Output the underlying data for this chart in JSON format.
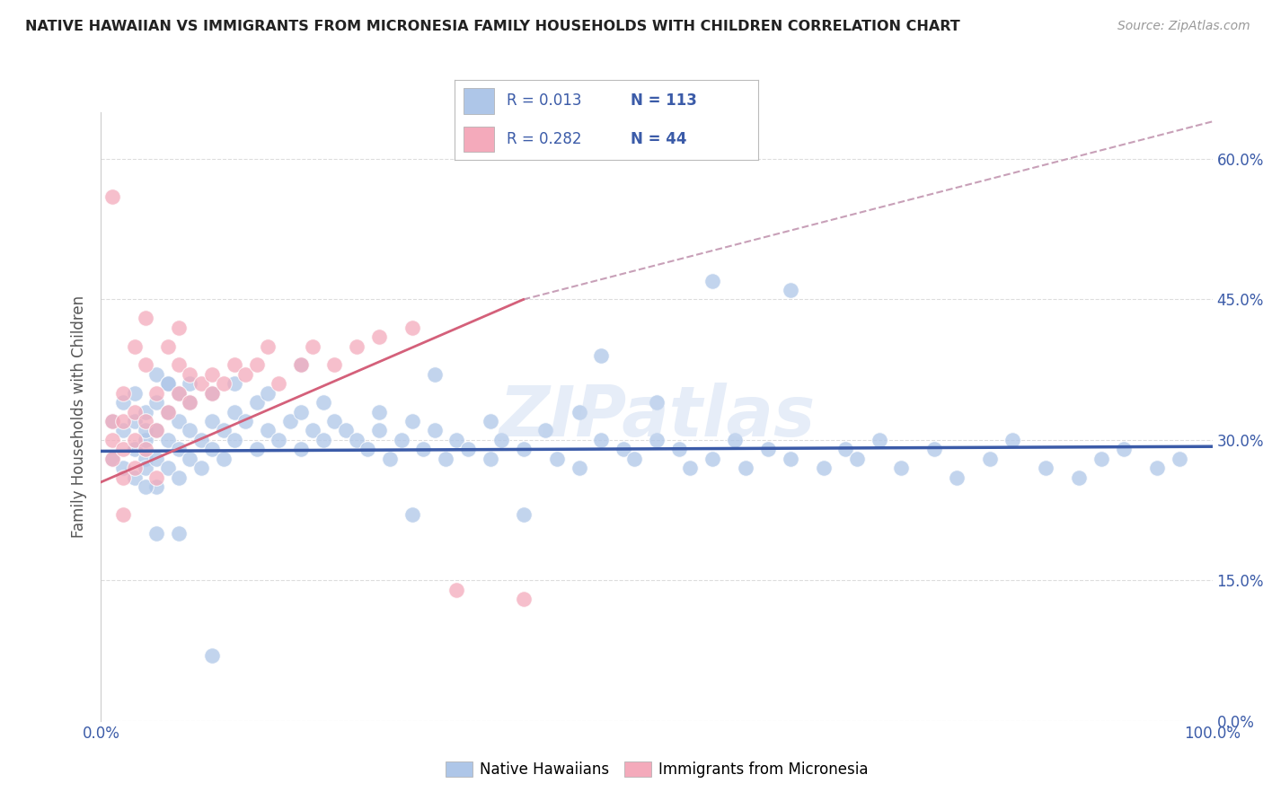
{
  "title": "NATIVE HAWAIIAN VS IMMIGRANTS FROM MICRONESIA FAMILY HOUSEHOLDS WITH CHILDREN CORRELATION CHART",
  "source": "Source: ZipAtlas.com",
  "ylabel": "Family Households with Children",
  "xlim": [
    0.0,
    1.0
  ],
  "ylim": [
    0.0,
    0.65
  ],
  "yticks": [
    0.0,
    0.15,
    0.3,
    0.45,
    0.6
  ],
  "ytick_labels": [
    "0.0%",
    "15.0%",
    "30.0%",
    "45.0%",
    "60.0%"
  ],
  "xticks": [
    0.0,
    1.0
  ],
  "xtick_labels": [
    "0.0%",
    "100.0%"
  ],
  "legend_r1": "0.013",
  "legend_n1": "113",
  "legend_r2": "0.282",
  "legend_n2": "44",
  "color_blue": "#AEC6E8",
  "color_pink": "#F4AABB",
  "color_blue_line": "#3B5BA8",
  "color_pink_line": "#D4607A",
  "color_dashed": "#C8A0B8",
  "watermark": "ZIPatlas",
  "blue_scatter_x": [
    0.01,
    0.01,
    0.02,
    0.02,
    0.02,
    0.03,
    0.03,
    0.03,
    0.03,
    0.04,
    0.04,
    0.04,
    0.04,
    0.04,
    0.05,
    0.05,
    0.05,
    0.05,
    0.05,
    0.06,
    0.06,
    0.06,
    0.06,
    0.07,
    0.07,
    0.07,
    0.07,
    0.08,
    0.08,
    0.08,
    0.09,
    0.09,
    0.1,
    0.1,
    0.1,
    0.11,
    0.11,
    0.12,
    0.12,
    0.13,
    0.14,
    0.14,
    0.15,
    0.16,
    0.17,
    0.18,
    0.18,
    0.19,
    0.2,
    0.21,
    0.22,
    0.23,
    0.24,
    0.25,
    0.26,
    0.27,
    0.28,
    0.29,
    0.3,
    0.31,
    0.32,
    0.33,
    0.35,
    0.36,
    0.38,
    0.4,
    0.41,
    0.43,
    0.45,
    0.47,
    0.48,
    0.5,
    0.52,
    0.53,
    0.55,
    0.57,
    0.58,
    0.6,
    0.62,
    0.65,
    0.67,
    0.68,
    0.7,
    0.72,
    0.75,
    0.77,
    0.8,
    0.82,
    0.85,
    0.88,
    0.9,
    0.92,
    0.95,
    0.97,
    0.18,
    0.3,
    0.45,
    0.55,
    0.62,
    0.5,
    0.38,
    0.28,
    0.1,
    0.07,
    0.05,
    0.04,
    0.06,
    0.08,
    0.12,
    0.15,
    0.2,
    0.25,
    0.35,
    0.43
  ],
  "blue_scatter_y": [
    0.28,
    0.32,
    0.27,
    0.31,
    0.34,
    0.26,
    0.29,
    0.32,
    0.35,
    0.28,
    0.3,
    0.33,
    0.27,
    0.31,
    0.25,
    0.28,
    0.31,
    0.34,
    0.37,
    0.27,
    0.3,
    0.33,
    0.36,
    0.26,
    0.29,
    0.32,
    0.35,
    0.28,
    0.31,
    0.34,
    0.27,
    0.3,
    0.29,
    0.32,
    0.35,
    0.28,
    0.31,
    0.3,
    0.33,
    0.32,
    0.29,
    0.34,
    0.31,
    0.3,
    0.32,
    0.29,
    0.33,
    0.31,
    0.3,
    0.32,
    0.31,
    0.3,
    0.29,
    0.31,
    0.28,
    0.3,
    0.32,
    0.29,
    0.31,
    0.28,
    0.3,
    0.29,
    0.28,
    0.3,
    0.29,
    0.31,
    0.28,
    0.27,
    0.3,
    0.29,
    0.28,
    0.3,
    0.29,
    0.27,
    0.28,
    0.3,
    0.27,
    0.29,
    0.28,
    0.27,
    0.29,
    0.28,
    0.3,
    0.27,
    0.29,
    0.26,
    0.28,
    0.3,
    0.27,
    0.26,
    0.28,
    0.29,
    0.27,
    0.28,
    0.38,
    0.37,
    0.39,
    0.47,
    0.46,
    0.34,
    0.22,
    0.22,
    0.07,
    0.2,
    0.2,
    0.25,
    0.36,
    0.36,
    0.36,
    0.35,
    0.34,
    0.33,
    0.32,
    0.33
  ],
  "pink_scatter_x": [
    0.01,
    0.01,
    0.01,
    0.01,
    0.02,
    0.02,
    0.02,
    0.02,
    0.02,
    0.03,
    0.03,
    0.03,
    0.03,
    0.04,
    0.04,
    0.04,
    0.04,
    0.05,
    0.05,
    0.05,
    0.06,
    0.06,
    0.07,
    0.07,
    0.07,
    0.08,
    0.08,
    0.09,
    0.1,
    0.1,
    0.11,
    0.12,
    0.13,
    0.14,
    0.15,
    0.16,
    0.18,
    0.19,
    0.21,
    0.23,
    0.25,
    0.28,
    0.32,
    0.38
  ],
  "pink_scatter_y": [
    0.56,
    0.3,
    0.32,
    0.28,
    0.26,
    0.29,
    0.32,
    0.35,
    0.22,
    0.27,
    0.3,
    0.33,
    0.4,
    0.29,
    0.32,
    0.43,
    0.38,
    0.31,
    0.35,
    0.26,
    0.33,
    0.4,
    0.35,
    0.38,
    0.42,
    0.34,
    0.37,
    0.36,
    0.37,
    0.35,
    0.36,
    0.38,
    0.37,
    0.38,
    0.4,
    0.36,
    0.38,
    0.4,
    0.38,
    0.4,
    0.41,
    0.42,
    0.14,
    0.13
  ],
  "blue_line_x": [
    0.0,
    1.0
  ],
  "blue_line_y": [
    0.288,
    0.293
  ],
  "pink_line_x": [
    0.0,
    0.38
  ],
  "pink_line_y": [
    0.255,
    0.45
  ],
  "dashed_line_x": [
    0.38,
    1.0
  ],
  "dashed_line_y": [
    0.45,
    0.64
  ],
  "background_color": "#FFFFFF",
  "grid_color": "#DDDDDD"
}
